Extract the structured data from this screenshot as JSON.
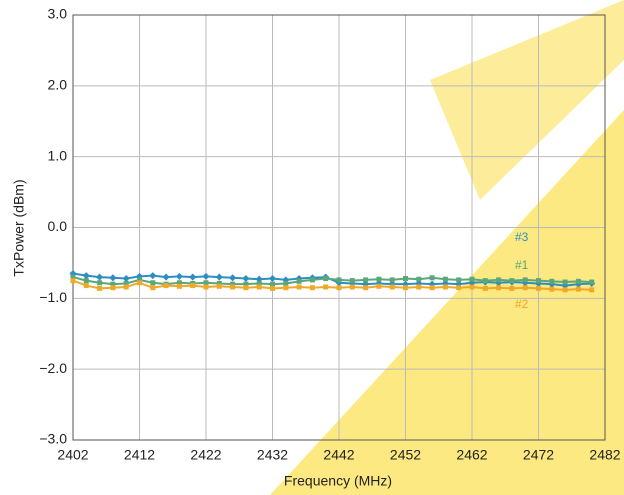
{
  "chart_data": {
    "type": "line",
    "x_label": "Frequency (MHz)",
    "y_label": "TxPower (dBm)",
    "x": [
      2402,
      2404,
      2406,
      2408,
      2410,
      2412,
      2414,
      2416,
      2418,
      2420,
      2422,
      2424,
      2426,
      2428,
      2430,
      2432,
      2434,
      2436,
      2438,
      2440,
      2442,
      2444,
      2446,
      2448,
      2450,
      2452,
      2454,
      2456,
      2458,
      2460,
      2462,
      2464,
      2466,
      2468,
      2470,
      2472,
      2474,
      2476,
      2478,
      2480
    ],
    "series": [
      {
        "name": "#3",
        "color": "#2e8ec4",
        "values": [
          -0.65,
          -0.68,
          -0.7,
          -0.71,
          -0.72,
          -0.69,
          -0.68,
          -0.7,
          -0.69,
          -0.7,
          -0.69,
          -0.7,
          -0.71,
          -0.72,
          -0.73,
          -0.72,
          -0.74,
          -0.72,
          -0.71,
          -0.7,
          -0.78,
          -0.79,
          -0.8,
          -0.79,
          -0.8,
          -0.8,
          -0.79,
          -0.8,
          -0.79,
          -0.8,
          -0.78,
          -0.77,
          -0.78,
          -0.77,
          -0.78,
          -0.79,
          -0.8,
          -0.82,
          -0.8,
          -0.79
        ]
      },
      {
        "name": "#1",
        "color": "#5aa77a",
        "values": [
          -0.7,
          -0.75,
          -0.78,
          -0.8,
          -0.79,
          -0.74,
          -0.78,
          -0.8,
          -0.78,
          -0.79,
          -0.78,
          -0.79,
          -0.8,
          -0.8,
          -0.79,
          -0.8,
          -0.79,
          -0.76,
          -0.74,
          -0.72,
          -0.74,
          -0.75,
          -0.74,
          -0.73,
          -0.74,
          -0.72,
          -0.73,
          -0.71,
          -0.73,
          -0.74,
          -0.73,
          -0.75,
          -0.74,
          -0.75,
          -0.74,
          -0.75,
          -0.76,
          -0.77,
          -0.76,
          -0.77
        ]
      },
      {
        "name": "#2",
        "color": "#f0a828",
        "values": [
          -0.75,
          -0.82,
          -0.86,
          -0.85,
          -0.84,
          -0.78,
          -0.85,
          -0.82,
          -0.83,
          -0.82,
          -0.84,
          -0.83,
          -0.84,
          -0.85,
          -0.84,
          -0.86,
          -0.85,
          -0.84,
          -0.85,
          -0.84,
          -0.85,
          -0.84,
          -0.85,
          -0.83,
          -0.84,
          -0.85,
          -0.84,
          -0.85,
          -0.84,
          -0.85,
          -0.84,
          -0.86,
          -0.85,
          -0.86,
          -0.85,
          -0.86,
          -0.87,
          -0.88,
          -0.87,
          -0.88
        ]
      }
    ],
    "xlim": [
      2402,
      2482
    ],
    "xticks": [
      2402,
      2412,
      2422,
      2432,
      2442,
      2452,
      2462,
      2472,
      2482
    ],
    "ylim": [
      -3,
      3
    ],
    "yticks": [
      {
        "value": 3,
        "label": "3.0"
      },
      {
        "value": 2,
        "label": "2.0"
      },
      {
        "value": 1,
        "label": "1.0"
      },
      {
        "value": 0,
        "label": "0.0"
      },
      {
        "value": -1,
        "label": "−1.0"
      },
      {
        "value": -2,
        "label": "−2.0"
      },
      {
        "value": -3,
        "label": "−3.0"
      }
    ],
    "grid": true
  }
}
